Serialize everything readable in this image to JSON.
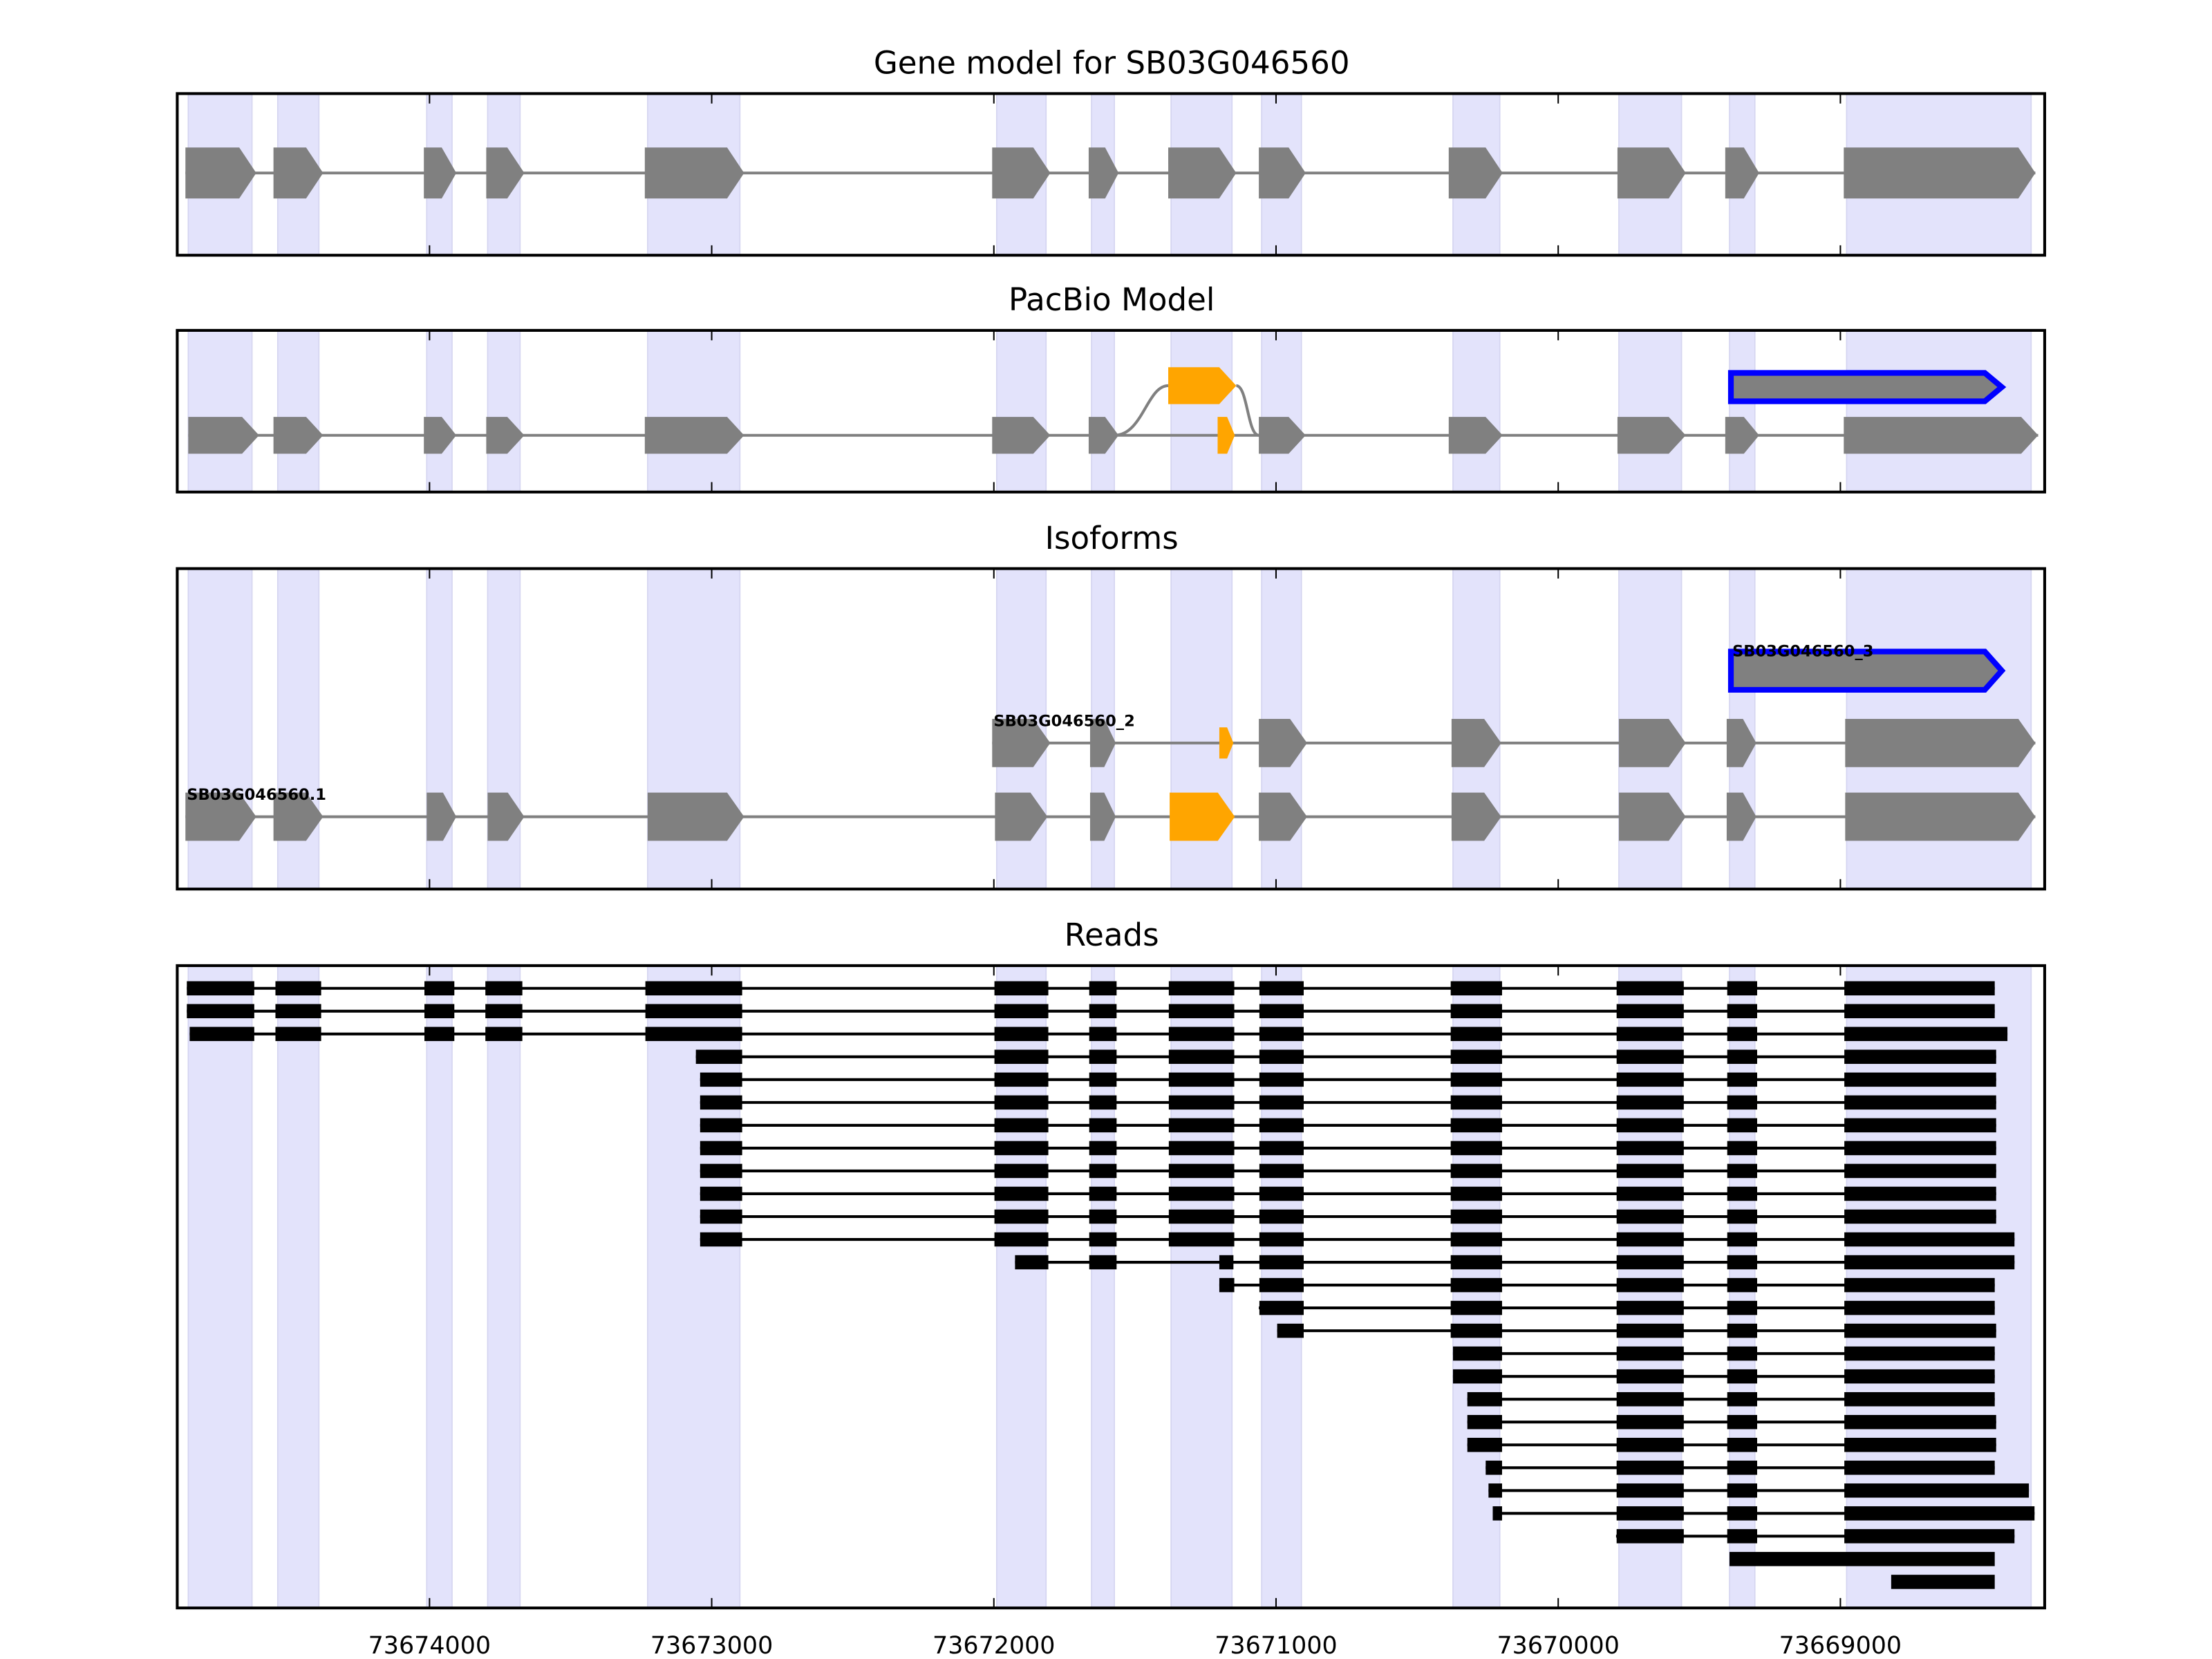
{
  "chart_data": {
    "type": "gene-track",
    "xlim": [
      73674894,
      73668276
    ],
    "x_reversed": true,
    "xticks": [
      73674000,
      73673000,
      73672000,
      73671000,
      73670000,
      73669000
    ],
    "xtick_labels": [
      "73674000",
      "73673000",
      "73672000",
      "73671000",
      "73670000",
      "73669000"
    ],
    "colors": {
      "exon": "#808080",
      "intron": "#808080",
      "alt_exon": "#FFA500",
      "highlight": "#0000FF",
      "shade": "#E3E3FB",
      "read": "#000000"
    },
    "shaded_regions": [
      [
        73674855,
        73674629
      ],
      [
        73674538,
        73674392
      ],
      [
        73674010,
        73673920
      ],
      [
        73673794,
        73673679
      ],
      [
        73673227,
        73672900
      ],
      [
        73671990,
        73671815
      ],
      [
        73671654,
        73671573
      ],
      [
        73671372,
        73671156
      ],
      [
        73671051,
        73670910
      ],
      [
        73670373,
        73670207
      ],
      [
        73669785,
        73669563
      ],
      [
        73669393,
        73669303
      ],
      [
        73668978,
        73668324
      ]
    ],
    "panels": {
      "gene_model": {
        "title": "Gene model for SB03G046560",
        "exons": [
          [
            73674865,
            73674614
          ],
          [
            73674553,
            73674377
          ],
          [
            73674020,
            73673905
          ],
          [
            73673799,
            73673664
          ],
          [
            73673237,
            73672885
          ],
          [
            73672006,
            73671800
          ],
          [
            73671664,
            73671558
          ],
          [
            73671382,
            73671141
          ],
          [
            73671061,
            73670895
          ],
          [
            73670388,
            73670197
          ],
          [
            73669790,
            73669548
          ],
          [
            73669408,
            73669288
          ],
          [
            73668988,
            73668309
          ]
        ]
      },
      "pacbio_model": {
        "title": "PacBio Model",
        "exons": [
          [
            73674855,
            73674604
          ],
          [
            73674553,
            73674377
          ],
          [
            73674020,
            73673905
          ],
          [
            73673799,
            73673664
          ],
          [
            73673237,
            73672885
          ],
          [
            73672006,
            73671800
          ],
          [
            73671664,
            73671558
          ],
          [
            73671061,
            73670895
          ],
          [
            73670388,
            73670197
          ],
          [
            73669790,
            73669548
          ],
          [
            73669408,
            73669288
          ],
          [
            73668988,
            73668299
          ]
        ],
        "alt_small_exon": [
          73671207,
          73671146
        ],
        "alt_upper_exon": [
          73671382,
          73671141
        ],
        "alt_splice": {
          "from": 73671573,
          "to": 73671061
        },
        "highlight_exon": [
          73669388,
          73668428
        ]
      },
      "isoforms": {
        "title": "Isoforms",
        "items": [
          {
            "label": "SB03G046560_3",
            "highlight": true,
            "exons": [
              [
                73669388,
                73668428
              ]
            ],
            "alt_index": -1
          },
          {
            "label": "SB03G046560_2",
            "highlight": false,
            "alt_index": 2,
            "exons": [
              [
                73672006,
                73671800
              ],
              [
                73671659,
                73671568
              ],
              [
                73671201,
                73671151
              ],
              [
                73671061,
                73670890
              ],
              [
                73670378,
                73670202
              ],
              [
                73669785,
                73669548
              ],
              [
                73669403,
                73669298
              ],
              [
                73668983,
                73668309
              ]
            ]
          },
          {
            "label": "SB03G046560.1",
            "highlight": false,
            "alt_index": 7,
            "exons": [
              [
                73674865,
                73674614
              ],
              [
                73674553,
                73674377
              ],
              [
                73674010,
                73673905
              ],
              [
                73673794,
                73673664
              ],
              [
                73673227,
                73672885
              ],
              [
                73671996,
                73671810
              ],
              [
                73671659,
                73671568
              ],
              [
                73671377,
                73671146
              ],
              [
                73671061,
                73670890
              ],
              [
                73670378,
                73670202
              ],
              [
                73669785,
                73669548
              ],
              [
                73669403,
                73669298
              ],
              [
                73668983,
                73668309
              ]
            ]
          }
        ]
      },
      "reads": {
        "title": "Reads",
        "rows": [
          {
            "start": 73674860,
            "end": 73668453,
            "regions": [
              0,
              1,
              2,
              3,
              4,
              5,
              6,
              7,
              8,
              9,
              10,
              11,
              12
            ]
          },
          {
            "start": 73674860,
            "end": 73668453,
            "regions": [
              0,
              1,
              2,
              3,
              4,
              5,
              6,
              7,
              8,
              9,
              10,
              11,
              12
            ]
          },
          {
            "start": 73674850,
            "end": 73668408,
            "regions": [
              0,
              1,
              2,
              3,
              4,
              5,
              6,
              7,
              8,
              9,
              10,
              11,
              12
            ]
          },
          {
            "start": 73673056,
            "end": 73668448,
            "regions": [
              4,
              5,
              6,
              7,
              8,
              9,
              10,
              11,
              12
            ]
          },
          {
            "start": 73673041,
            "end": 73668448,
            "regions": [
              4,
              5,
              6,
              7,
              8,
              9,
              10,
              11,
              12
            ]
          },
          {
            "start": 73673041,
            "end": 73668448,
            "regions": [
              4,
              5,
              6,
              7,
              8,
              9,
              10,
              11,
              12
            ]
          },
          {
            "start": 73673041,
            "end": 73668448,
            "regions": [
              4,
              5,
              6,
              7,
              8,
              9,
              10,
              11,
              12
            ]
          },
          {
            "start": 73673041,
            "end": 73668448,
            "regions": [
              4,
              5,
              6,
              7,
              8,
              9,
              10,
              11,
              12
            ]
          },
          {
            "start": 73673041,
            "end": 73668448,
            "regions": [
              4,
              5,
              6,
              7,
              8,
              9,
              10,
              11,
              12
            ]
          },
          {
            "start": 73673041,
            "end": 73668448,
            "regions": [
              4,
              5,
              6,
              7,
              8,
              9,
              10,
              11,
              12
            ]
          },
          {
            "start": 73673041,
            "end": 73668448,
            "regions": [
              4,
              5,
              6,
              7,
              8,
              9,
              10,
              11,
              12
            ]
          },
          {
            "start": 73673041,
            "end": 73668383,
            "regions": [
              4,
              5,
              6,
              7,
              8,
              9,
              10,
              11,
              12
            ]
          },
          {
            "start": 73671925,
            "end": 73668383,
            "regions": [
              5,
              6,
              7,
              8,
              9,
              10,
              11,
              12
            ],
            "alt7": true
          },
          {
            "start": 73671201,
            "end": 73668453,
            "regions": [
              7,
              8,
              9,
              10,
              11,
              12
            ]
          },
          {
            "start": 73671061,
            "end": 73668453,
            "regions": [
              8,
              9,
              10,
              11,
              12
            ]
          },
          {
            "start": 73670996,
            "end": 73668448,
            "regions": [
              8,
              9,
              10,
              11,
              12
            ]
          },
          {
            "start": 73670373,
            "end": 73668453,
            "regions": [
              9,
              10,
              11,
              12
            ]
          },
          {
            "start": 73670373,
            "end": 73668453,
            "regions": [
              9,
              10,
              11,
              12
            ]
          },
          {
            "start": 73670322,
            "end": 73668453,
            "regions": [
              9,
              10,
              11,
              12
            ]
          },
          {
            "start": 73670322,
            "end": 73668448,
            "regions": [
              9,
              10,
              11,
              12
            ]
          },
          {
            "start": 73670322,
            "end": 73668448,
            "regions": [
              9,
              10,
              11,
              12
            ]
          },
          {
            "start": 73670257,
            "end": 73668453,
            "regions": [
              9,
              10,
              11,
              12
            ]
          },
          {
            "start": 73670247,
            "end": 73668332,
            "regions": [
              9,
              10,
              11,
              12
            ]
          },
          {
            "start": 73670232,
            "end": 73668312,
            "regions": [
              9,
              10,
              11,
              12
            ]
          },
          {
            "start": 73669795,
            "end": 73668383,
            "regions": [
              10,
              11,
              12
            ]
          },
          {
            "start": 73669393,
            "end": 73668453,
            "regions": [],
            "continuous": true
          },
          {
            "start": 73668820,
            "end": 73668453,
            "regions": [],
            "continuous": true
          }
        ]
      }
    }
  }
}
